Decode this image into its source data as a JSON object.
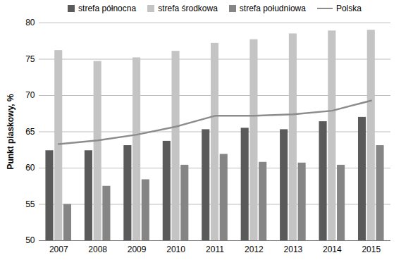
{
  "chart_data": {
    "type": "bar",
    "categories": [
      "2007",
      "2008",
      "2009",
      "2010",
      "2011",
      "2012",
      "2013",
      "2014",
      "2015"
    ],
    "series": [
      {
        "name": "strefa północna",
        "color": "#5a5a5a",
        "values": [
          62.4,
          62.4,
          63.1,
          63.7,
          65.3,
          65.5,
          65.3,
          66.4,
          67.0
        ]
      },
      {
        "name": "strefa środkowa",
        "color": "#c4c4c4",
        "values": [
          76.2,
          74.7,
          75.2,
          76.1,
          77.2,
          77.7,
          78.5,
          78.9,
          79.0
        ]
      },
      {
        "name": "strefa południowa",
        "color": "#858585",
        "values": [
          55.0,
          57.5,
          58.4,
          60.4,
          61.9,
          60.8,
          60.7,
          60.4,
          63.1
        ]
      },
      {
        "name": "Polska",
        "type": "line",
        "color": "#8c8c8c",
        "values": [
          63.3,
          63.8,
          64.6,
          65.7,
          67.2,
          67.2,
          67.4,
          67.9,
          69.3
        ]
      }
    ],
    "y_label": "Punkt piaskowy, %",
    "ylim": [
      50,
      80
    ],
    "yticks": [
      50,
      55,
      60,
      65,
      70,
      75,
      80
    ],
    "grid": true,
    "legend": "top"
  }
}
